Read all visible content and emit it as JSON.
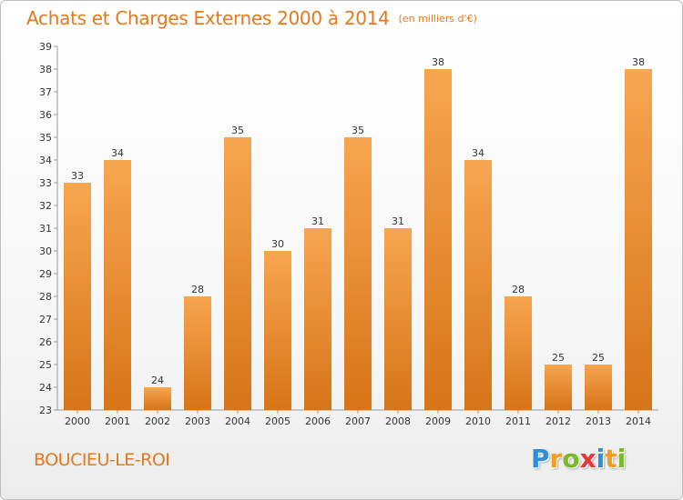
{
  "title": {
    "main": "Achats et Charges Externes 2000 à 2014",
    "unit": "(en milliers d'€)"
  },
  "commune": "BOUCIEU-LE-ROI",
  "logo": {
    "text": "Proxiti",
    "letters": [
      {
        "char": "P",
        "color": "#2f8fd6"
      },
      {
        "char": "r",
        "color": "#f0a020"
      },
      {
        "char": "o",
        "color": "#7ab82c"
      },
      {
        "char": "x",
        "color": "#e23a3a"
      },
      {
        "char": "i",
        "color": "#2f8fd6"
      },
      {
        "char": "t",
        "color": "#f0a020"
      },
      {
        "char": "i",
        "color": "#7ab82c"
      }
    ]
  },
  "colors": {
    "bar_light": "#f7a650",
    "bar_dark": "#d77418",
    "title": "#e27a1d"
  },
  "chart_data": {
    "type": "bar",
    "categories": [
      "2000",
      "2001",
      "2002",
      "2003",
      "2004",
      "2005",
      "2006",
      "2007",
      "2008",
      "2009",
      "2010",
      "2011",
      "2012",
      "2013",
      "2014"
    ],
    "values": [
      33,
      34,
      24,
      28,
      35,
      30,
      31,
      35,
      31,
      38,
      34,
      28,
      25,
      25,
      38
    ],
    "ylim": [
      23,
      39
    ],
    "yticks": [
      23,
      24,
      25,
      26,
      27,
      28,
      29,
      30,
      31,
      32,
      33,
      34,
      35,
      36,
      37,
      38,
      39
    ],
    "grid": false,
    "data_labels": true
  }
}
